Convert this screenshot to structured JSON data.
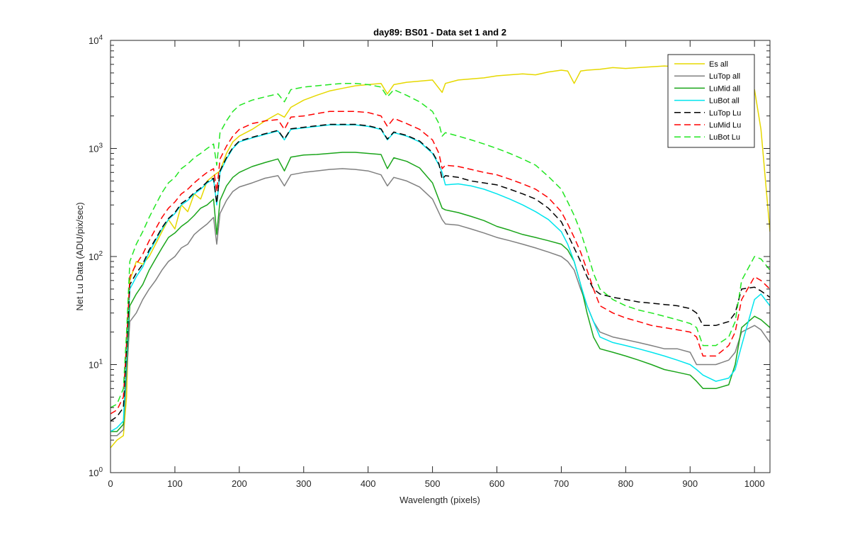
{
  "chart_data": {
    "type": "line",
    "title": "day89: BS01 - Data set 1 and 2",
    "xlabel": "Wavelength (pixels)",
    "ylabel": "Net Lu Data (ADU/pix/sec)",
    "xlim": [
      0,
      1024
    ],
    "ylim": [
      1,
      10000
    ],
    "yscale": "log",
    "xticks": [
      0,
      100,
      200,
      300,
      400,
      500,
      600,
      700,
      800,
      900,
      1000
    ],
    "ytick_mantissa": "10",
    "yticks": [
      {
        "value": 1,
        "exp": "0"
      },
      {
        "value": 10,
        "exp": "1"
      },
      {
        "value": 100,
        "exp": "2"
      },
      {
        "value": 1000,
        "exp": "3"
      },
      {
        "value": 10000,
        "exp": "4"
      }
    ],
    "grid": false,
    "legend_position": "top-right",
    "series": [
      {
        "name": "Es  all",
        "color": "#e6d800",
        "dash": "solid",
        "x": [
          0,
          10,
          20,
          25,
          30,
          40,
          50,
          60,
          70,
          80,
          90,
          100,
          110,
          120,
          130,
          140,
          150,
          160,
          170,
          180,
          190,
          200,
          220,
          240,
          260,
          270,
          280,
          300,
          320,
          340,
          360,
          380,
          400,
          420,
          430,
          440,
          460,
          480,
          500,
          515,
          520,
          540,
          560,
          580,
          600,
          620,
          640,
          660,
          680,
          700,
          710,
          720,
          730,
          740,
          760,
          780,
          800,
          820,
          840,
          860,
          880,
          900,
          920,
          940,
          960,
          980,
          1000,
          1010,
          1024
        ],
        "y": [
          1.7,
          2.0,
          2.2,
          5,
          60,
          90,
          85,
          100,
          130,
          170,
          220,
          180,
          300,
          260,
          380,
          340,
          500,
          560,
          620,
          900,
          1150,
          1300,
          1500,
          1800,
          2100,
          1950,
          2400,
          2800,
          3100,
          3400,
          3600,
          3800,
          3900,
          4000,
          3200,
          3900,
          4100,
          4200,
          4300,
          3300,
          4000,
          4300,
          4400,
          4500,
          4700,
          4800,
          4900,
          4800,
          5100,
          5300,
          5200,
          4000,
          5200,
          5300,
          5400,
          5600,
          5500,
          5600,
          5700,
          5800,
          5700,
          5600,
          5500,
          5500,
          5400,
          5200,
          3500,
          1500,
          170
        ]
      },
      {
        "name": "LuTop  all",
        "color": "#808080",
        "dash": "solid",
        "x": [
          0,
          10,
          20,
          25,
          30,
          40,
          50,
          60,
          70,
          80,
          90,
          100,
          110,
          120,
          130,
          140,
          150,
          160,
          165,
          170,
          180,
          190,
          200,
          220,
          240,
          260,
          270,
          280,
          300,
          320,
          340,
          360,
          380,
          400,
          420,
          430,
          440,
          460,
          480,
          500,
          515,
          520,
          540,
          560,
          580,
          600,
          620,
          640,
          660,
          680,
          700,
          710,
          720,
          730,
          740,
          750,
          760,
          780,
          800,
          820,
          840,
          860,
          880,
          900,
          910,
          920,
          940,
          960,
          970,
          980,
          1000,
          1010,
          1024
        ],
        "y": [
          2.2,
          2.2,
          2.5,
          8,
          25,
          30,
          40,
          50,
          60,
          75,
          90,
          100,
          120,
          130,
          160,
          180,
          200,
          230,
          130,
          250,
          330,
          400,
          440,
          480,
          530,
          560,
          450,
          570,
          600,
          620,
          640,
          650,
          640,
          620,
          570,
          450,
          540,
          500,
          440,
          340,
          220,
          200,
          195,
          180,
          165,
          150,
          140,
          130,
          120,
          110,
          100,
          90,
          75,
          50,
          35,
          25,
          20,
          18,
          17,
          16,
          15,
          14,
          14,
          13,
          10,
          10,
          10,
          11,
          13,
          20,
          23,
          21,
          16
        ]
      },
      {
        "name": "LuMid  all",
        "color": "#1aa51a",
        "dash": "solid",
        "x": [
          0,
          10,
          20,
          25,
          30,
          40,
          50,
          60,
          70,
          80,
          90,
          100,
          110,
          120,
          130,
          140,
          150,
          160,
          165,
          170,
          180,
          190,
          200,
          220,
          240,
          260,
          270,
          280,
          300,
          320,
          340,
          360,
          380,
          400,
          420,
          430,
          440,
          460,
          480,
          500,
          515,
          520,
          540,
          560,
          580,
          600,
          620,
          640,
          660,
          680,
          700,
          710,
          720,
          730,
          740,
          750,
          760,
          780,
          800,
          820,
          840,
          860,
          880,
          900,
          910,
          920,
          940,
          960,
          970,
          980,
          1000,
          1010,
          1024
        ],
        "y": [
          2.4,
          2.4,
          2.8,
          10,
          35,
          45,
          55,
          75,
          95,
          120,
          150,
          165,
          190,
          210,
          240,
          280,
          300,
          340,
          160,
          330,
          450,
          540,
          600,
          680,
          740,
          800,
          620,
          830,
          870,
          880,
          900,
          920,
          920,
          900,
          880,
          650,
          820,
          760,
          660,
          480,
          280,
          270,
          255,
          235,
          215,
          190,
          175,
          160,
          150,
          140,
          130,
          115,
          90,
          55,
          30,
          18,
          14,
          13,
          12,
          11,
          10,
          9,
          8.5,
          8,
          7,
          6,
          6,
          6.5,
          10,
          22,
          28,
          26,
          22
        ]
      },
      {
        "name": "LuBot  all",
        "color": "#00e5ee",
        "dash": "solid",
        "x": [
          0,
          10,
          20,
          25,
          30,
          40,
          50,
          60,
          70,
          80,
          90,
          100,
          110,
          120,
          130,
          140,
          150,
          160,
          165,
          170,
          180,
          190,
          200,
          220,
          240,
          260,
          270,
          280,
          300,
          320,
          340,
          360,
          380,
          400,
          420,
          430,
          440,
          460,
          480,
          500,
          510,
          515,
          520,
          540,
          560,
          580,
          600,
          620,
          640,
          660,
          680,
          700,
          710,
          720,
          730,
          740,
          750,
          760,
          780,
          800,
          820,
          840,
          860,
          880,
          900,
          910,
          920,
          940,
          960,
          970,
          980,
          1000,
          1010,
          1024
        ],
        "y": [
          2.4,
          2.6,
          3,
          12,
          50,
          65,
          80,
          110,
          140,
          180,
          220,
          250,
          300,
          330,
          380,
          420,
          480,
          520,
          300,
          600,
          800,
          1000,
          1150,
          1250,
          1350,
          1450,
          1200,
          1500,
          1550,
          1600,
          1650,
          1650,
          1650,
          1600,
          1500,
          1200,
          1400,
          1300,
          1150,
          900,
          700,
          600,
          460,
          470,
          450,
          420,
          380,
          340,
          300,
          260,
          220,
          170,
          130,
          90,
          55,
          35,
          25,
          18,
          16,
          15,
          14,
          13,
          12,
          11,
          10,
          9,
          8,
          7,
          7.5,
          9,
          15,
          40,
          45,
          35
        ]
      },
      {
        "name": "LuTop  Lu",
        "color": "#000000",
        "dash": "dashed",
        "x": [
          0,
          10,
          20,
          25,
          30,
          40,
          50,
          60,
          70,
          80,
          90,
          100,
          110,
          120,
          130,
          140,
          150,
          160,
          165,
          170,
          180,
          190,
          200,
          220,
          240,
          260,
          270,
          280,
          300,
          320,
          340,
          360,
          380,
          400,
          420,
          430,
          440,
          460,
          480,
          500,
          510,
          515,
          520,
          540,
          560,
          580,
          600,
          620,
          640,
          660,
          680,
          700,
          710,
          720,
          730,
          740,
          750,
          760,
          780,
          800,
          820,
          840,
          860,
          880,
          900,
          910,
          920,
          940,
          960,
          970,
          980,
          1000,
          1010,
          1024
        ],
        "y": [
          3,
          3.3,
          4,
          14,
          55,
          70,
          85,
          115,
          145,
          185,
          225,
          255,
          310,
          340,
          390,
          430,
          490,
          530,
          310,
          620,
          820,
          1020,
          1170,
          1270,
          1370,
          1470,
          1220,
          1520,
          1570,
          1620,
          1670,
          1670,
          1670,
          1620,
          1520,
          1220,
          1420,
          1320,
          1170,
          920,
          720,
          520,
          560,
          540,
          500,
          480,
          460,
          420,
          380,
          340,
          280,
          210,
          160,
          120,
          90,
          65,
          50,
          45,
          42,
          40,
          38,
          37,
          36,
          35,
          33,
          30,
          23,
          23,
          25,
          30,
          50,
          52,
          48,
          42
        ]
      },
      {
        "name": "LuMid  Lu",
        "color": "#ff0000",
        "dash": "dashed",
        "x": [
          0,
          10,
          20,
          25,
          30,
          40,
          50,
          60,
          70,
          80,
          90,
          100,
          110,
          120,
          130,
          140,
          150,
          160,
          165,
          170,
          180,
          190,
          200,
          220,
          240,
          260,
          270,
          280,
          300,
          320,
          340,
          360,
          380,
          400,
          420,
          430,
          440,
          460,
          480,
          500,
          510,
          515,
          520,
          540,
          560,
          580,
          600,
          620,
          640,
          660,
          680,
          700,
          710,
          720,
          730,
          740,
          750,
          760,
          780,
          800,
          820,
          840,
          860,
          880,
          900,
          910,
          920,
          940,
          960,
          970,
          980,
          1000,
          1010,
          1024
        ],
        "y": [
          3.5,
          3.8,
          5,
          16,
          65,
          85,
          105,
          140,
          180,
          230,
          280,
          320,
          380,
          420,
          480,
          540,
          600,
          650,
          400,
          800,
          1050,
          1300,
          1500,
          1700,
          1800,
          1850,
          1500,
          1950,
          2000,
          2100,
          2200,
          2200,
          2200,
          2150,
          2000,
          1600,
          1900,
          1700,
          1500,
          1200,
          900,
          650,
          700,
          680,
          640,
          600,
          570,
          520,
          470,
          420,
          350,
          260,
          200,
          150,
          110,
          75,
          50,
          35,
          30,
          27,
          25,
          23,
          22,
          21,
          20,
          18,
          12,
          12,
          15,
          20,
          40,
          65,
          60,
          50
        ]
      },
      {
        "name": "LuBot  Lu",
        "color": "#22e622",
        "dash": "dashed",
        "x": [
          0,
          10,
          20,
          25,
          30,
          40,
          50,
          60,
          70,
          80,
          90,
          100,
          110,
          120,
          130,
          140,
          150,
          160,
          165,
          170,
          180,
          190,
          200,
          220,
          240,
          260,
          270,
          280,
          300,
          320,
          340,
          360,
          380,
          400,
          420,
          430,
          440,
          460,
          480,
          500,
          510,
          515,
          520,
          540,
          560,
          580,
          600,
          620,
          640,
          660,
          680,
          700,
          710,
          720,
          730,
          740,
          750,
          760,
          780,
          800,
          820,
          840,
          860,
          880,
          900,
          910,
          920,
          940,
          960,
          970,
          980,
          1000,
          1010,
          1024
        ],
        "y": [
          4,
          4.3,
          6,
          20,
          90,
          130,
          170,
          230,
          300,
          390,
          480,
          540,
          650,
          720,
          820,
          900,
          1000,
          1100,
          700,
          1400,
          1800,
          2200,
          2500,
          2800,
          3000,
          3200,
          2700,
          3500,
          3700,
          3800,
          3900,
          4000,
          4000,
          3900,
          3700,
          3000,
          3500,
          3100,
          2700,
          2200,
          1700,
          1300,
          1400,
          1300,
          1200,
          1100,
          1000,
          900,
          800,
          700,
          550,
          420,
          320,
          240,
          170,
          110,
          70,
          50,
          40,
          35,
          32,
          30,
          28,
          26,
          24,
          22,
          15,
          15,
          18,
          25,
          60,
          100,
          95,
          75
        ]
      }
    ]
  }
}
